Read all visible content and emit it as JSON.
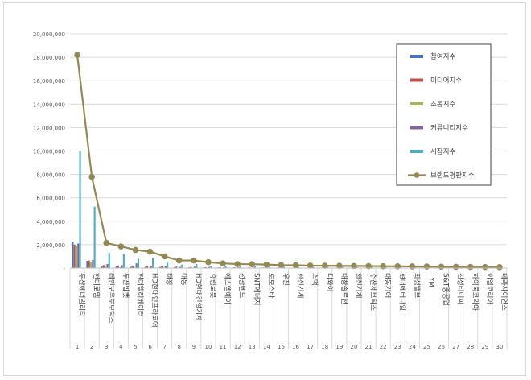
{
  "chart_data": {
    "type": "bar",
    "y_axis": {
      "min": 0,
      "max": 20000000,
      "tick_labels": [
        "-",
        "2,000,000",
        "4,000,000",
        "6,000,000",
        "8,000,000",
        "10,000,000",
        "12,000,000",
        "14,000,000",
        "16,000,000",
        "18,000,000",
        "20,000,000"
      ]
    },
    "legend_position": "top-right",
    "categories": [
      "두산에너빌리티",
      "현대로템",
      "레인보우로보틱스",
      "두산밥캣",
      "현대엘리베이터",
      "HD현대인프라코어",
      "태광",
      "대동",
      "HD현대건설기계",
      "휴림로봇",
      "에스엠에이",
      "성광벤드",
      "SNT에너지",
      "로보스타",
      "우진",
      "한신기계",
      "스맥",
      "디와이",
      "대창솔루션",
      "화천기계",
      "수산세보틱스",
      "대동기어",
      "현대에버다임",
      "화성밸브",
      "TYM",
      "S&T중공업",
      "진성티이씨",
      "하이록코리아",
      "이엠코리아",
      "테라사이언스"
    ],
    "numbers": [
      "1",
      "2",
      "3",
      "4",
      "5",
      "6",
      "7",
      "8",
      "9",
      "10",
      "11",
      "12",
      "13",
      "14",
      "15",
      "16",
      "17",
      "18",
      "19",
      "20",
      "21",
      "22",
      "23",
      "24",
      "25",
      "26",
      "27",
      "28",
      "29",
      "30"
    ],
    "series": [
      {
        "name": "참여지수",
        "type": "bar",
        "color": "#4472c4",
        "values": [
          2200000,
          620000,
          150000,
          130000,
          110000,
          110000,
          90000,
          80000,
          60000,
          50000,
          50000,
          45000,
          40000,
          40000,
          35000,
          30000,
          30000,
          30000,
          28000,
          25000,
          25000,
          22000,
          20000,
          20000,
          18000,
          16000,
          15000,
          15000,
          14000,
          12000
        ]
      },
      {
        "name": "미디어지수",
        "type": "bar",
        "color": "#c0504d",
        "values": [
          2000000,
          650000,
          250000,
          220000,
          160000,
          170000,
          210000,
          120000,
          100000,
          80000,
          70000,
          60000,
          60000,
          50000,
          45000,
          40000,
          40000,
          38000,
          35000,
          33000,
          30000,
          28000,
          26000,
          25000,
          22000,
          20000,
          20000,
          18000,
          16000,
          15000
        ]
      },
      {
        "name": "소통지수",
        "type": "bar",
        "color": "#9bbb59",
        "values": [
          1900000,
          550000,
          100000,
          70000,
          50000,
          40000,
          60000,
          30000,
          40000,
          30000,
          20000,
          25000,
          20000,
          20000,
          15000,
          12000,
          12000,
          10000,
          10000,
          10000,
          8000,
          8000,
          8000,
          7000,
          6000,
          6000,
          5000,
          5000,
          5000,
          4000
        ]
      },
      {
        "name": "커뮤니티지수",
        "type": "bar",
        "color": "#8064a2",
        "values": [
          2100000,
          700000,
          350000,
          250000,
          400000,
          200000,
          140000,
          100000,
          120000,
          90000,
          60000,
          60000,
          50000,
          50000,
          45000,
          40000,
          35000,
          35000,
          30000,
          30000,
          28000,
          25000,
          25000,
          22000,
          20000,
          20000,
          18000,
          16000,
          15000,
          14000
        ]
      },
      {
        "name": "시장지수",
        "type": "bar",
        "color": "#4bacc6",
        "values": [
          10000000,
          5250000,
          1300000,
          1200000,
          800000,
          900000,
          450000,
          300000,
          350000,
          200000,
          180000,
          150000,
          160000,
          120000,
          110000,
          100000,
          100000,
          90000,
          90000,
          80000,
          80000,
          70000,
          60000,
          60000,
          55000,
          50000,
          45000,
          45000,
          40000,
          40000
        ]
      },
      {
        "name": "브랜드평판지수",
        "type": "line",
        "color": "#938953",
        "values": [
          18200000,
          7800000,
          2150000,
          1850000,
          1550000,
          1400000,
          1000000,
          650000,
          650000,
          500000,
          400000,
          340000,
          330000,
          300000,
          250000,
          240000,
          210000,
          200000,
          190000,
          180000,
          170000,
          160000,
          150000,
          140000,
          130000,
          120000,
          110000,
          100000,
          90000,
          80000
        ]
      }
    ]
  }
}
